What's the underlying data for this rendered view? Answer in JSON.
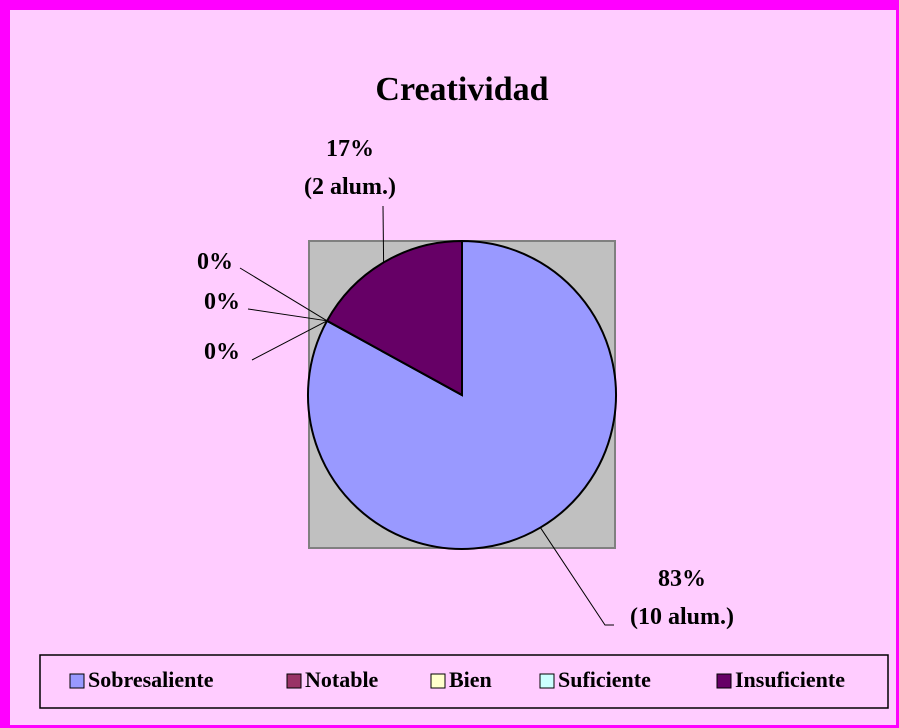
{
  "chart_data": {
    "type": "pie",
    "title": "Creatividad",
    "categories": [
      "Sobresaliente",
      "Notable",
      "Bien",
      "Suficiente",
      "Insuficiente"
    ],
    "values": [
      83,
      0,
      0,
      0,
      17
    ],
    "value_labels": [
      "83%\n(10 alum.)",
      "0%",
      "0%",
      "0%",
      "17%\n(2 alum.)"
    ],
    "colors": [
      "#9999ff",
      "#993366",
      "#ffffcc",
      "#ccffff",
      "#660066"
    ],
    "legend": "bottom"
  }
}
